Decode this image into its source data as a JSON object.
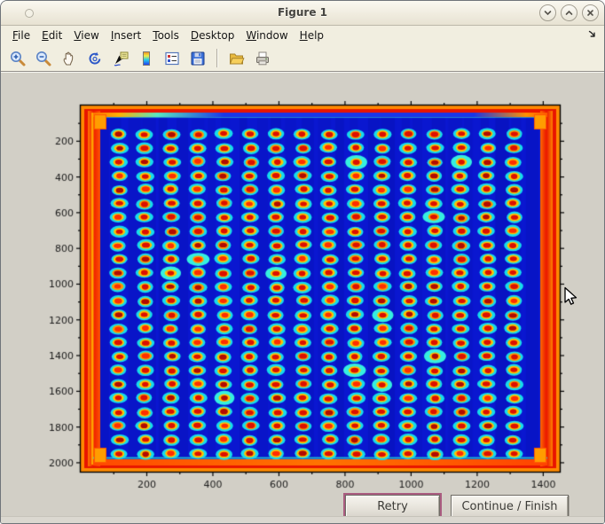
{
  "window": {
    "title": "Figure 1",
    "controls": [
      "shade-window",
      "maximize-window",
      "close-window"
    ]
  },
  "menu": {
    "items": [
      "File",
      "Edit",
      "View",
      "Insert",
      "Tools",
      "Desktop",
      "Window",
      "Help"
    ],
    "dock_arrow_icon": "dock-figure-arrow"
  },
  "toolbar": {
    "icons": [
      "zoom-in",
      "zoom-out",
      "pan",
      "rotate-3d",
      "data-cursor",
      "insert-colorbar",
      "insert-legend",
      "save-figure",
      "open-file",
      "print-figure"
    ]
  },
  "buttons": {
    "retry_label": "Retry",
    "continue_label": "Continue / Finish"
  },
  "chart_data": {
    "type": "heatmap",
    "title": "",
    "xlabel": "",
    "ylabel": "",
    "colormap": "jet",
    "description": "Image of a 384-well microplate (24 rows x 16 columns of spots) displayed with the jet colormap: deep blue background, each spot has a red core, yellow ring and cyan halo; the plate rim glows red/orange with corner tabs.",
    "x_range": [
      0,
      1450
    ],
    "y_range": [
      0,
      2050
    ],
    "x_ticks": [
      200,
      400,
      600,
      800,
      1000,
      1200,
      1400
    ],
    "y_ticks": [
      200,
      400,
      600,
      800,
      1000,
      1200,
      1400,
      1600,
      1800,
      2000
    ],
    "minor_tick_interval": 100,
    "grid": {
      "rows": 24,
      "cols": 16,
      "col_center_start": 115,
      "col_center_end": 1310,
      "row_center_start": 160,
      "row_center_end": 1950
    },
    "background_color": "#0a17d0",
    "spot_colors": {
      "halo": "#16dcec",
      "ring": "#ffc300",
      "core": "#dc1000"
    },
    "frame_colors": [
      "#ff8a00",
      "#e81500",
      "#ffbf00",
      "#35e3d0"
    ],
    "tick_label_color": "#1a1a1a",
    "axes_color": "#000000"
  }
}
